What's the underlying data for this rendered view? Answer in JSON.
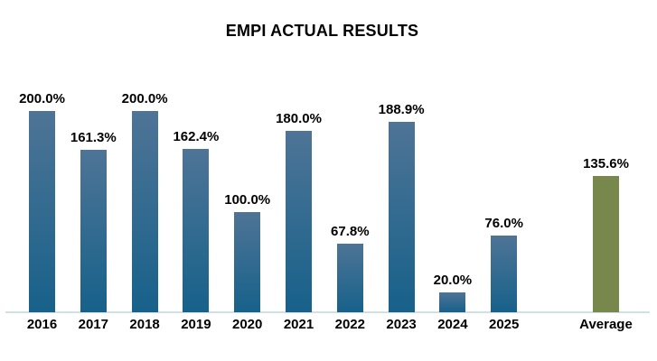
{
  "chart_data": {
    "type": "bar",
    "title": "EMPI ACTUAL RESULTS",
    "categories": [
      "2016",
      "2017",
      "2018",
      "2019",
      "2020",
      "2021",
      "2022",
      "2023",
      "2024",
      "2025",
      "Average"
    ],
    "values": [
      200.0,
      161.3,
      200.0,
      162.4,
      100.0,
      180.0,
      67.8,
      188.9,
      20.0,
      76.0,
      135.6
    ],
    "value_labels": [
      "200.0%",
      "161.3%",
      "200.0%",
      "162.4%",
      "100.0%",
      "180.0%",
      "67.8%",
      "188.9%",
      "20.0%",
      "76.0%",
      "135.6%"
    ],
    "xlabel": "",
    "ylabel": "",
    "ylim": [
      0,
      200
    ],
    "grid": false,
    "legend": "none",
    "colors": {
      "year_bar_top": "#4e7496",
      "year_bar_bottom": "#17618a",
      "average_bar": "#78884c",
      "axis_line": "#cfe0e9",
      "text": "#000000"
    }
  }
}
